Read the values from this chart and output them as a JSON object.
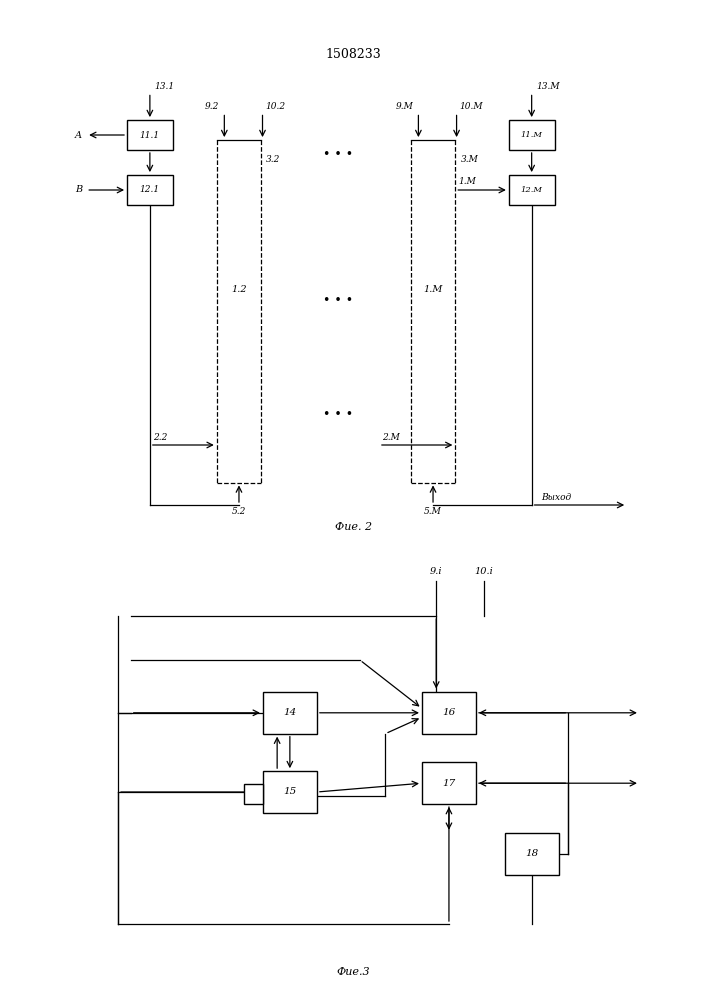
{
  "title": "1508233",
  "fig2_caption": "Фие. 2",
  "fig3_caption": "Фие.3",
  "background": "#ffffff"
}
